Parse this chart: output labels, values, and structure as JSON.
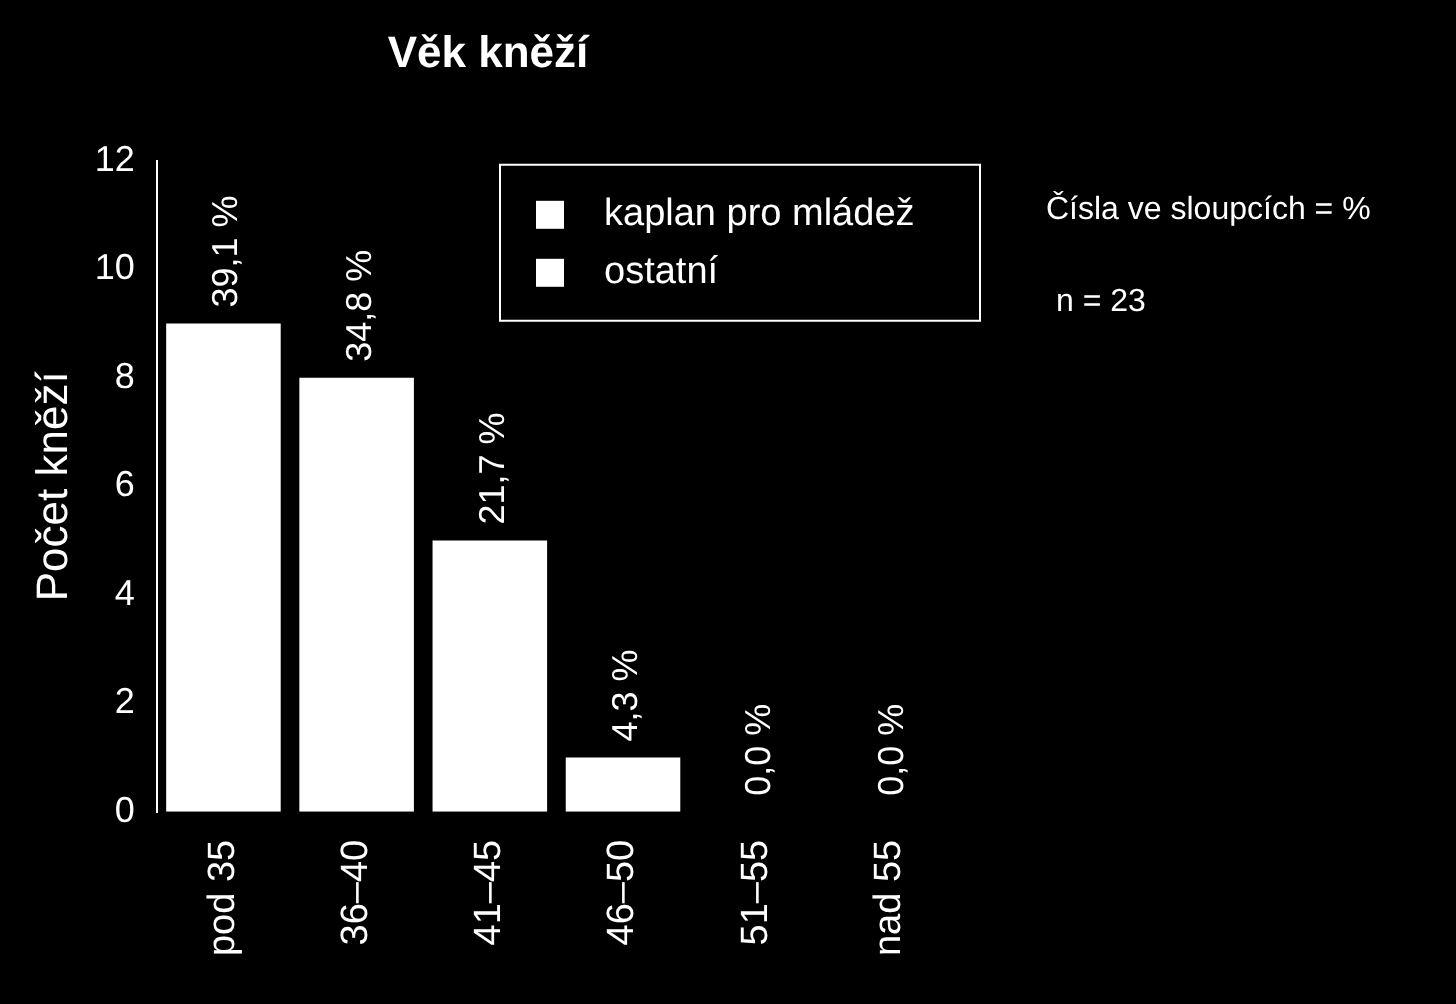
{
  "chart_data": {
    "type": "bar",
    "title": "Věk kněží",
    "ylabel": "Počet kněží",
    "categories": [
      "pod 35",
      "36–40",
      "41–45",
      "46–50",
      "51–55",
      "nad 55"
    ],
    "stacked": true,
    "legend": "top right",
    "grid": false,
    "series": [
      {
        "name": "kaplan pro mládež",
        "color": "#ffffff",
        "values": [
          0,
          0,
          0,
          0,
          0,
          0
        ]
      },
      {
        "name": "ostatní",
        "color": "#ffffff",
        "values": [
          9,
          8,
          5,
          1,
          0,
          0
        ]
      }
    ],
    "ylim": [
      0,
      12
    ],
    "yticks": [
      0,
      2,
      4,
      6,
      8,
      10,
      12
    ],
    "annotations": [
      "Čísla ve sloupcích = %",
      "n = 23",
      {
        "text": "39,1 %",
        "x": "pod 35",
        "y": 9
      },
      {
        "text": "34,8 %",
        "x": "36–40",
        "y": 8
      },
      {
        "text": "21,7 %",
        "x": "41–45",
        "y": 5
      },
      {
        "text": "4,3 %",
        "x": "46–50",
        "y": 1
      },
      {
        "text": "0,0 %",
        "x": "51–55",
        "y": 0
      },
      {
        "text": "0,0 %",
        "x": "nad 55",
        "y": 0
      }
    ]
  }
}
